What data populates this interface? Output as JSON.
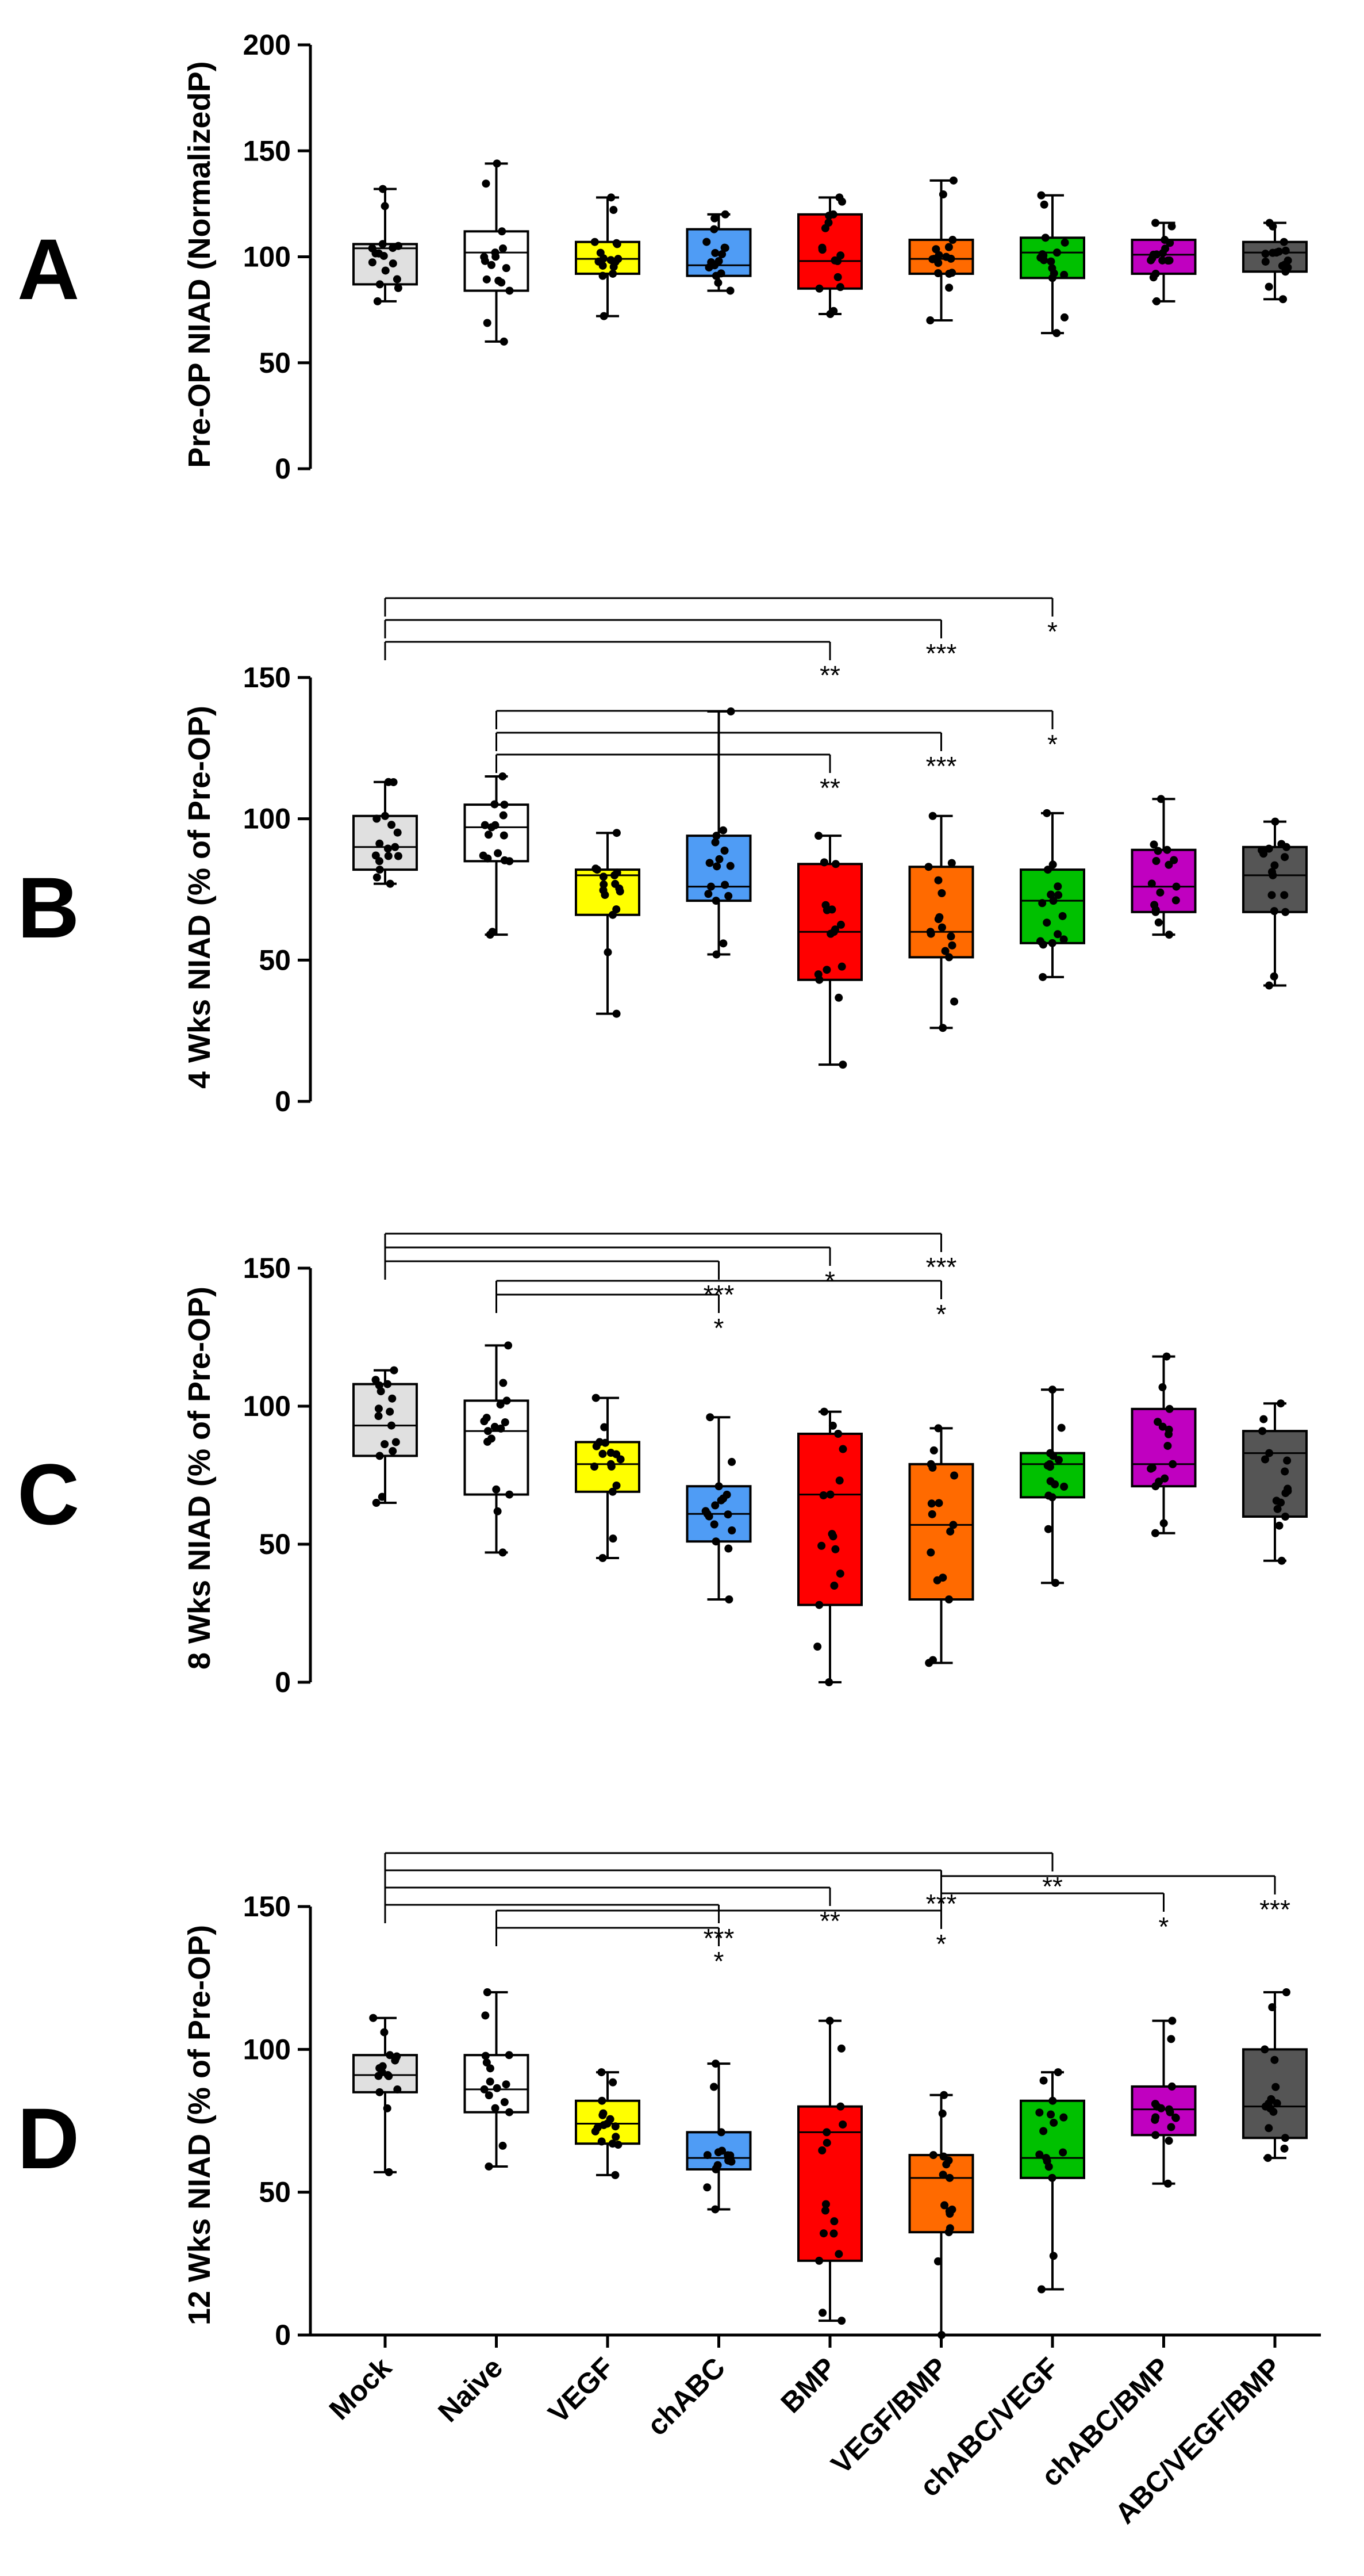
{
  "figure": {
    "categories": [
      "Mock",
      "Naive",
      "VEGF",
      "chABC",
      "BMP",
      "VEGF/BMP",
      "chABC/VEGF",
      "chABC/BMP",
      "ABC/VEGF/BMP"
    ],
    "colors": [
      "#e0e0e0",
      "#ffffff",
      "#ffff00",
      "#4f9cf5",
      "#ff0000",
      "#ff6a00",
      "#00c000",
      "#c000c0",
      "#555555"
    ]
  },
  "chart_data": [
    {
      "type": "box",
      "panel": "A",
      "ylabel": "Pre-OP NIAD (NormalizedP)",
      "ylim": [
        0,
        200
      ],
      "yticks": [
        0,
        50,
        100,
        150,
        200
      ],
      "boxes": [
        {
          "min": 79,
          "q1": 87,
          "median": 104,
          "q3": 106,
          "max": 132
        },
        {
          "min": 60,
          "q1": 84,
          "median": 102,
          "q3": 112,
          "max": 144
        },
        {
          "min": 72,
          "q1": 92,
          "median": 99,
          "q3": 107,
          "max": 128
        },
        {
          "min": 84,
          "q1": 91,
          "median": 96,
          "q3": 113,
          "max": 120
        },
        {
          "min": 73,
          "q1": 85,
          "median": 98,
          "q3": 120,
          "max": 128
        },
        {
          "min": 70,
          "q1": 92,
          "median": 99,
          "q3": 108,
          "max": 136
        },
        {
          "min": 64,
          "q1": 90,
          "median": 102,
          "q3": 109,
          "max": 129
        },
        {
          "min": 79,
          "q1": 92,
          "median": 101,
          "q3": 108,
          "max": 116
        },
        {
          "min": 80,
          "q1": 93,
          "median": 102,
          "q3": 107,
          "max": 116
        }
      ],
      "comparisons": []
    },
    {
      "type": "box",
      "panel": "B",
      "ylabel": "4 Wks NIAD (% of Pre-OP)",
      "ylim": [
        0,
        150
      ],
      "yticks": [
        0,
        50,
        100,
        150
      ],
      "boxes": [
        {
          "min": 77,
          "q1": 82,
          "median": 90,
          "q3": 101,
          "max": 113
        },
        {
          "min": 59,
          "q1": 85,
          "median": 97,
          "q3": 105,
          "max": 115
        },
        {
          "min": 31,
          "q1": 66,
          "median": 80,
          "q3": 82,
          "max": 95
        },
        {
          "min": 52,
          "q1": 71,
          "median": 76,
          "q3": 94,
          "max": 138
        },
        {
          "min": 13,
          "q1": 43,
          "median": 60,
          "q3": 84,
          "max": 94
        },
        {
          "min": 26,
          "q1": 51,
          "median": 60,
          "q3": 83,
          "max": 101
        },
        {
          "min": 44,
          "q1": 56,
          "median": 71,
          "q3": 82,
          "max": 102
        },
        {
          "min": 59,
          "q1": 67,
          "median": 76,
          "q3": 89,
          "max": 107
        },
        {
          "min": 41,
          "q1": 67,
          "median": 80,
          "q3": 90,
          "max": 99
        }
      ],
      "comparisons": [
        {
          "from": 0,
          "to": 4,
          "label": "**"
        },
        {
          "from": 0,
          "to": 5,
          "label": "***"
        },
        {
          "from": 0,
          "to": 6,
          "label": "*"
        },
        {
          "from": 1,
          "to": 4,
          "label": "**"
        },
        {
          "from": 1,
          "to": 5,
          "label": "***"
        },
        {
          "from": 1,
          "to": 6,
          "label": "*"
        }
      ]
    },
    {
      "type": "box",
      "panel": "C",
      "ylabel": "8 Wks NIAD (% of Pre-OP)",
      "ylim": [
        0,
        150
      ],
      "yticks": [
        0,
        50,
        100,
        150
      ],
      "boxes": [
        {
          "min": 65,
          "q1": 82,
          "median": 93,
          "q3": 108,
          "max": 113
        },
        {
          "min": 47,
          "q1": 68,
          "median": 91,
          "q3": 102,
          "max": 122
        },
        {
          "min": 45,
          "q1": 69,
          "median": 79,
          "q3": 87,
          "max": 103
        },
        {
          "min": 30,
          "q1": 51,
          "median": 61,
          "q3": 71,
          "max": 96
        },
        {
          "min": 0,
          "q1": 28,
          "median": 68,
          "q3": 90,
          "max": 98
        },
        {
          "min": 7,
          "q1": 30,
          "median": 57,
          "q3": 79,
          "max": 92
        },
        {
          "min": 36,
          "q1": 67,
          "median": 79,
          "q3": 83,
          "max": 106
        },
        {
          "min": 54,
          "q1": 71,
          "median": 79,
          "q3": 99,
          "max": 118
        },
        {
          "min": 44,
          "q1": 60,
          "median": 83,
          "q3": 91,
          "max": 101
        }
      ],
      "comparisons": [
        {
          "from": 0,
          "to": 3,
          "label": "***"
        },
        {
          "from": 0,
          "to": 4,
          "label": "*"
        },
        {
          "from": 0,
          "to": 5,
          "label": "***"
        },
        {
          "from": 1,
          "to": 3,
          "label": "*"
        },
        {
          "from": 1,
          "to": 5,
          "label": "*"
        }
      ]
    },
    {
      "type": "box",
      "panel": "D",
      "ylabel": "12 Wks NIAD (% of Pre-OP)",
      "ylim": [
        0,
        150
      ],
      "yticks": [
        0,
        50,
        100,
        150
      ],
      "boxes": [
        {
          "min": 57,
          "q1": 85,
          "median": 91,
          "q3": 98,
          "max": 111
        },
        {
          "min": 59,
          "q1": 78,
          "median": 86,
          "q3": 98,
          "max": 120
        },
        {
          "min": 56,
          "q1": 67,
          "median": 74,
          "q3": 82,
          "max": 92
        },
        {
          "min": 44,
          "q1": 58,
          "median": 62,
          "q3": 71,
          "max": 95
        },
        {
          "min": 5,
          "q1": 26,
          "median": 71,
          "q3": 80,
          "max": 110
        },
        {
          "min": 0,
          "q1": 36,
          "median": 55,
          "q3": 63,
          "max": 84
        },
        {
          "min": 16,
          "q1": 55,
          "median": 62,
          "q3": 82,
          "max": 92
        },
        {
          "min": 53,
          "q1": 70,
          "median": 79,
          "q3": 87,
          "max": 110
        },
        {
          "min": 62,
          "q1": 69,
          "median": 80,
          "q3": 100,
          "max": 120
        }
      ],
      "comparisons": [
        {
          "from": 0,
          "to": 3,
          "label": "***"
        },
        {
          "from": 0,
          "to": 4,
          "label": "**"
        },
        {
          "from": 0,
          "to": 5,
          "label": "***"
        },
        {
          "from": 0,
          "to": 6,
          "label": "**"
        },
        {
          "from": 1,
          "to": 3,
          "label": "*"
        },
        {
          "from": 1,
          "to": 5,
          "label": "*"
        },
        {
          "from": 5,
          "to": 7,
          "label": "*"
        },
        {
          "from": 5,
          "to": 8,
          "label": "***"
        }
      ]
    }
  ]
}
